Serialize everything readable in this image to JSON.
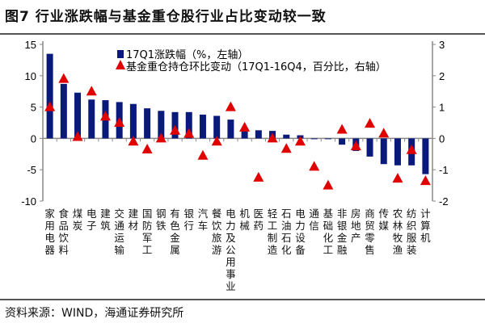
{
  "title": "图7  行业涨跌幅与基金重仓股行业占比变动较一致",
  "footer": "资料来源：WIND，海通证券研究所",
  "chart_data": {
    "type": "bar+scatter",
    "categories": [
      "家用电器",
      "食品饮料",
      "煤炭",
      "电子",
      "建筑",
      "交通运输",
      "建材",
      "国防军工",
      "钢铁",
      "有色金属",
      "银行",
      "汽车",
      "餐饮旅游",
      "电力及公用事业",
      "机械",
      "医药",
      "轻工制造",
      "石油石化",
      "电力设备",
      "通信",
      "基础化工",
      "非银金融",
      "房地产",
      "商贸零售",
      "传媒",
      "农林牧渔",
      "纺织服装",
      "计算机"
    ],
    "series": [
      {
        "name": "17Q1涨跌幅（%，左轴）",
        "type": "bar",
        "axis": "left",
        "color": "#0a1a7a",
        "values": [
          13.5,
          8.7,
          7.3,
          6.2,
          6.1,
          5.8,
          5.5,
          4.8,
          4.4,
          4.2,
          4.2,
          3.8,
          3.6,
          3.0,
          1.5,
          1.3,
          1.2,
          0.6,
          0.5,
          -0.1,
          -0.1,
          -1.0,
          -2.0,
          -2.9,
          -4.1,
          -4.3,
          -4.3,
          -5.7
        ]
      },
      {
        "name": "基金重仓持仓环比变动（17Q1-16Q4，百分比，右轴）",
        "type": "scatter",
        "marker": "triangle",
        "axis": "right",
        "color": "#e00000",
        "values": [
          1.0,
          1.9,
          0.05,
          1.5,
          0.7,
          0.5,
          -0.1,
          -0.35,
          0.0,
          0.25,
          0.15,
          -0.55,
          -0.1,
          1.0,
          0.35,
          -1.25,
          0.0,
          -0.33,
          -0.1,
          -0.9,
          -1.5,
          0.28,
          -0.25,
          0.47,
          0.16,
          -1.28,
          -0.37,
          -1.36
        ]
      }
    ],
    "left_axis": {
      "ylim": [
        -10,
        15
      ],
      "ticks": [
        -10,
        -5,
        0,
        5,
        10,
        15
      ]
    },
    "right_axis": {
      "ylim": [
        -2,
        3
      ],
      "ticks": [
        -2,
        -1,
        0,
        1,
        2,
        3
      ]
    },
    "legend": "top",
    "grid": false
  }
}
